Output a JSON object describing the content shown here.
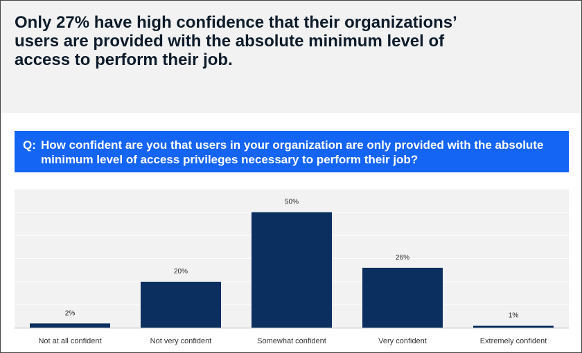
{
  "headline": "Only 27% have high confidence that their organizations’ users are provided with the absolute minimum level of access to perform their job.",
  "question": {
    "prefix": "Q:",
    "text": "How confident are you that users in your organization are only provided with the absolute minimum level of access privileges necessary to perform their job?"
  },
  "colors": {
    "header_bg": "#f2f2f2",
    "question_bg": "#1565f5",
    "bar": "#0b2f5f",
    "plot_bg": "#f2f2f2"
  },
  "chart_data": {
    "type": "bar",
    "categories": [
      "Not at all confident",
      "Not very confident",
      "Somewhat confident",
      "Very confident",
      "Extremely confident"
    ],
    "values": [
      2,
      20,
      50,
      26,
      1
    ],
    "data_labels": [
      "2%",
      "20%",
      "50%",
      "26%",
      "1%"
    ],
    "title": "",
    "xlabel": "",
    "ylabel": "",
    "ylim": [
      0,
      60
    ],
    "grid": true,
    "legend": "none"
  }
}
